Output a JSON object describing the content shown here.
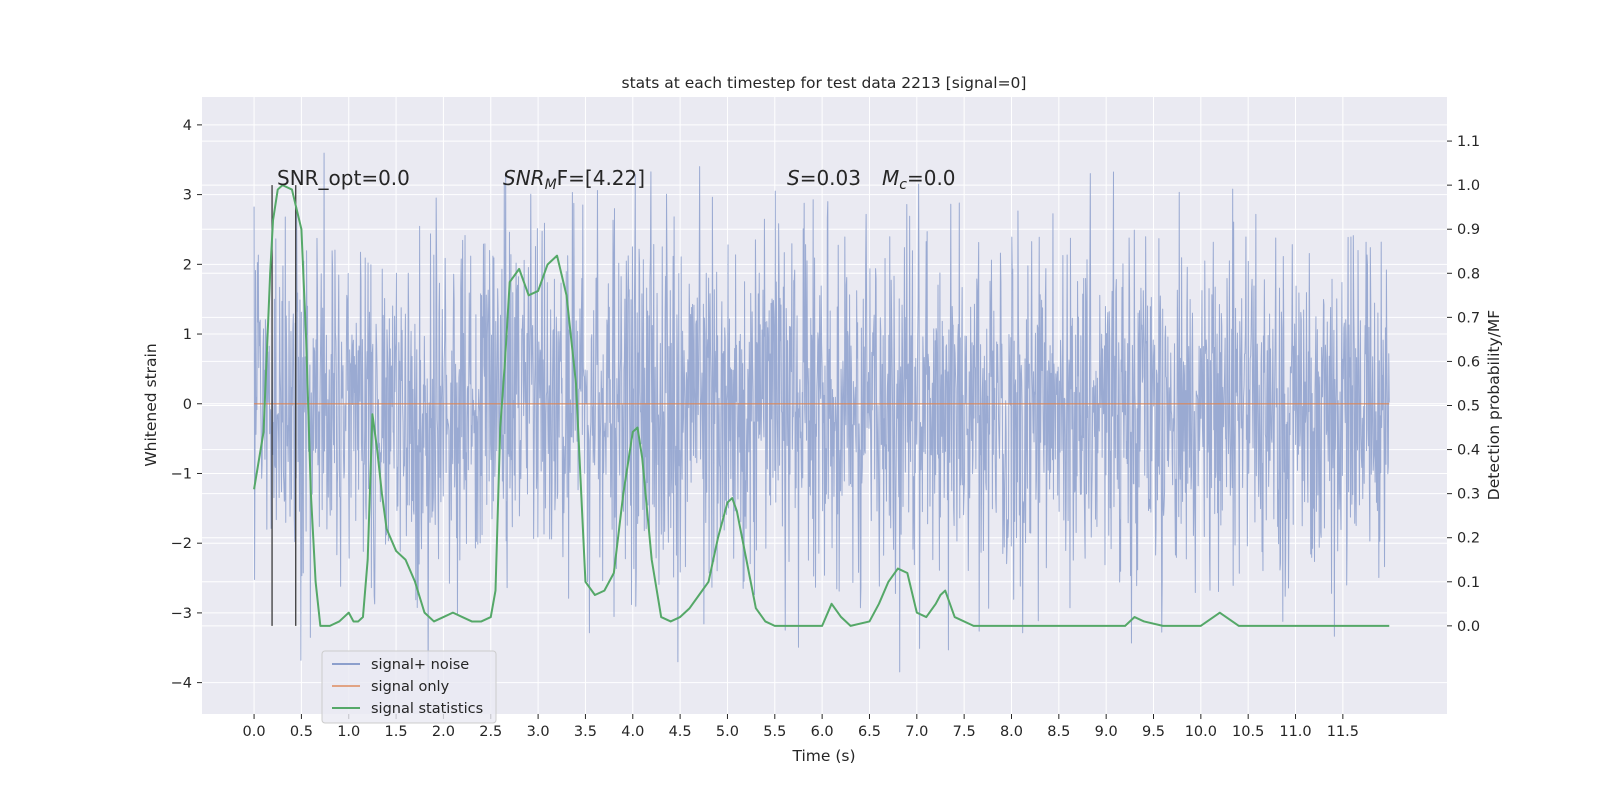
{
  "chart_data": {
    "type": "line",
    "title": "stats at each timestep for test data 2213 [signal=0]",
    "xlabel": "Time (s)",
    "ylabel_left": "Whitened strain",
    "ylabel_right": "Detection probability/MF",
    "xlim": [
      -0.55,
      12.6
    ],
    "ylim_left": [
      -4.45,
      4.4
    ],
    "ylim_right": [
      -0.2,
      1.2
    ],
    "grid": true,
    "x_ticks": [
      0.0,
      0.5,
      1.0,
      1.5,
      2.0,
      2.5,
      3.0,
      3.5,
      4.0,
      4.5,
      5.0,
      5.5,
      6.0,
      6.5,
      7.0,
      7.5,
      8.0,
      8.5,
      9.0,
      9.5,
      10.0,
      10.5,
      11.0,
      11.5
    ],
    "x_tick_labels": [
      "0.0",
      "0.5",
      "1.0",
      "1.5",
      "2.0",
      "2.5",
      "3.0",
      "3.5",
      "4.0",
      "4.5",
      "5.0",
      "5.5",
      "6.0",
      "6.5",
      "7.0",
      "7.5",
      "8.0",
      "8.5",
      "9.0",
      "9.5",
      "10.0",
      "10.5",
      "11.0",
      "11.5"
    ],
    "y_left_ticks": [
      -4,
      -3,
      -2,
      -1,
      0,
      1,
      2,
      3,
      4
    ],
    "y_left_tick_labels": [
      "−4",
      "−3",
      "−2",
      "−1",
      "0",
      "1",
      "2",
      "3",
      "4"
    ],
    "y_right_ticks": [
      0.0,
      0.1,
      0.2,
      0.3,
      0.4,
      0.5,
      0.6,
      0.7,
      0.8,
      0.9,
      1.0,
      1.1
    ],
    "y_right_tick_labels": [
      "0.0",
      "0.1",
      "0.2",
      "0.3",
      "0.4",
      "0.5",
      "0.6",
      "0.7",
      "0.8",
      "0.9",
      "1.0",
      "1.1"
    ],
    "legend": {
      "position": "lower-left",
      "entries": [
        {
          "label": "signal+ noise",
          "color": "#8c9fcc"
        },
        {
          "label": "signal only",
          "color": "#dd8452"
        },
        {
          "label": "signal statistics",
          "color": "#55a868"
        }
      ]
    },
    "annotations": {
      "snr_opt": "SNR_opt=0.0",
      "snr_mf_main": "SNR",
      "snr_mf_sub": "M",
      "snr_mf_rest": "F=[4.22]",
      "s_sym": "S",
      "s_val": "=0.03",
      "mc_sym": "M",
      "mc_sub": "c",
      "mc_val": "=0.0"
    },
    "vertical_markers_x": [
      0.19,
      0.44
    ],
    "noise_series": {
      "name": "signal+ noise",
      "color": "#8c9fcc",
      "t_range": [
        0.0,
        11.99
      ],
      "envelope_typical": [
        -1.3,
        1.3
      ],
      "peak_extremes": [
        -4.1,
        4.0
      ]
    },
    "signal_only_series": {
      "name": "signal only",
      "color": "#dd8452",
      "t_range": [
        0.0,
        11.99
      ],
      "value": 0.0
    },
    "statistics_series": {
      "name": "signal statistics",
      "color": "#55a868",
      "x": [
        0.0,
        0.1,
        0.17,
        0.2,
        0.25,
        0.3,
        0.4,
        0.5,
        0.55,
        0.6,
        0.65,
        0.7,
        0.8,
        0.9,
        1.0,
        1.05,
        1.1,
        1.15,
        1.2,
        1.25,
        1.3,
        1.35,
        1.4,
        1.5,
        1.6,
        1.7,
        1.8,
        1.9,
        2.0,
        2.1,
        2.2,
        2.3,
        2.4,
        2.5,
        2.55,
        2.6,
        2.65,
        2.7,
        2.8,
        2.9,
        3.0,
        3.1,
        3.2,
        3.3,
        3.4,
        3.5,
        3.6,
        3.7,
        3.8,
        3.9,
        4.0,
        4.05,
        4.1,
        4.2,
        4.3,
        4.4,
        4.5,
        4.6,
        4.7,
        4.8,
        4.9,
        5.0,
        5.05,
        5.1,
        5.2,
        5.3,
        5.4,
        5.5,
        5.7,
        6.0,
        6.1,
        6.2,
        6.3,
        6.5,
        6.6,
        6.7,
        6.8,
        6.9,
        7.0,
        7.1,
        7.2,
        7.25,
        7.3,
        7.4,
        7.6,
        8.0,
        8.5,
        9.0,
        9.2,
        9.3,
        9.4,
        9.6,
        10.0,
        10.2,
        10.4,
        10.6,
        11.0,
        11.5,
        11.8,
        11.99
      ],
      "values": [
        0.31,
        0.44,
        0.8,
        0.92,
        0.99,
        1.0,
        0.99,
        0.9,
        0.65,
        0.3,
        0.1,
        0.0,
        0.0,
        0.01,
        0.03,
        0.01,
        0.01,
        0.02,
        0.15,
        0.48,
        0.4,
        0.3,
        0.22,
        0.17,
        0.15,
        0.1,
        0.03,
        0.01,
        0.02,
        0.03,
        0.02,
        0.01,
        0.01,
        0.02,
        0.08,
        0.45,
        0.6,
        0.78,
        0.81,
        0.75,
        0.76,
        0.82,
        0.84,
        0.75,
        0.55,
        0.1,
        0.07,
        0.08,
        0.12,
        0.3,
        0.44,
        0.45,
        0.38,
        0.15,
        0.02,
        0.01,
        0.02,
        0.04,
        0.07,
        0.1,
        0.2,
        0.28,
        0.29,
        0.26,
        0.15,
        0.04,
        0.01,
        0.0,
        0.0,
        0.0,
        0.05,
        0.02,
        0.0,
        0.01,
        0.05,
        0.1,
        0.13,
        0.12,
        0.03,
        0.02,
        0.05,
        0.07,
        0.08,
        0.02,
        0.0,
        0.0,
        0.0,
        0.0,
        0.0,
        0.02,
        0.01,
        0.0,
        0.0,
        0.03,
        0.0,
        0.0,
        0.0,
        0.0,
        0.0,
        0.0
      ]
    }
  }
}
